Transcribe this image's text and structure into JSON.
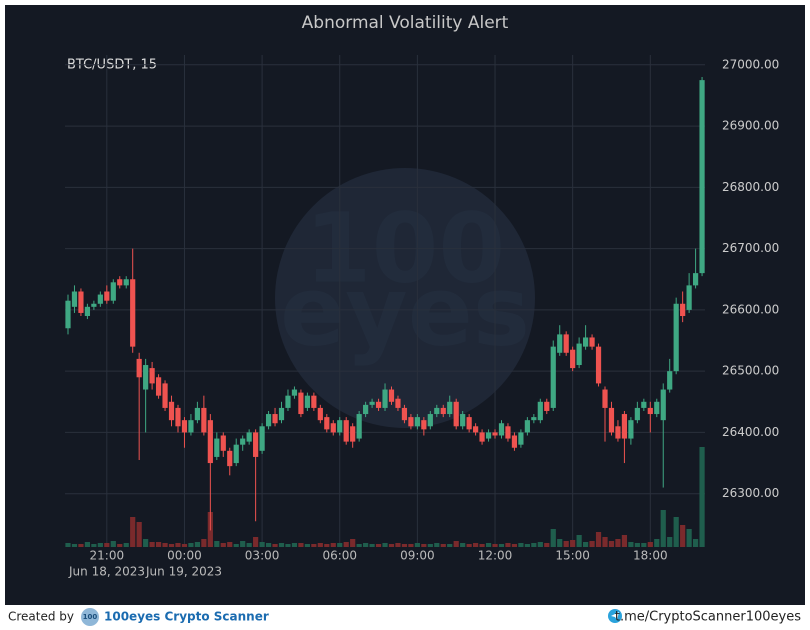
{
  "chart_data": {
    "type": "candlestick",
    "title": "Abnormal Volatility Alert",
    "subtitle": "BTC/USDT, 15",
    "watermark": [
      "100",
      "eyes"
    ],
    "categories": [
      null,
      null,
      null,
      null,
      null,
      null,
      "21:00",
      null,
      null,
      null,
      null,
      null,
      null,
      null,
      null,
      null,
      null,
      null,
      "00:00",
      null,
      null,
      null,
      null,
      null,
      null,
      null,
      null,
      null,
      null,
      null,
      "03:00",
      null,
      null,
      null,
      null,
      null,
      null,
      null,
      null,
      null,
      null,
      null,
      "06:00",
      null,
      null,
      null,
      null,
      null,
      null,
      null,
      null,
      null,
      null,
      null,
      "09:00",
      null,
      null,
      null,
      null,
      null,
      null,
      null,
      null,
      null,
      null,
      null,
      "12:00",
      null,
      null,
      null,
      null,
      null,
      null,
      null,
      null,
      null,
      null,
      null,
      "15:00",
      null,
      null,
      null,
      null,
      null,
      null,
      null,
      null,
      null,
      null,
      null,
      "18:00",
      null,
      null,
      null,
      null,
      null,
      null,
      null,
      null
    ],
    "date_labels": [
      "Jun 18, 2023",
      "Jun 19, 2023"
    ],
    "open": [
      26570,
      26605,
      26630,
      26590,
      26605,
      26610,
      26630,
      26615,
      26650,
      26640,
      26650,
      26520,
      26470,
      26505,
      26490,
      26480,
      26450,
      26440,
      26420,
      26400,
      26420,
      26440,
      26420,
      26360,
      26395,
      26370,
      26350,
      26380,
      26385,
      26400,
      26370,
      26410,
      26430,
      26420,
      26440,
      26460,
      26465,
      26440,
      26460,
      26440,
      26425,
      26415,
      26400,
      26420,
      26410,
      26390,
      26430,
      26445,
      26450,
      26440,
      26470,
      26455,
      26440,
      26425,
      26410,
      26420,
      26410,
      26430,
      26440,
      26430,
      26450,
      26410,
      26425,
      26410,
      26400,
      26390,
      26400,
      26395,
      26410,
      26395,
      26380,
      26400,
      26420,
      26420,
      26450,
      26440,
      26530,
      26560,
      26535,
      26510,
      26540,
      26555,
      26540,
      26470,
      26440,
      26410,
      26430,
      26390,
      26420,
      26440,
      26440,
      26430,
      26420,
      26470,
      26500,
      26610,
      26600,
      26640,
      26660
    ],
    "high": [
      26625,
      26640,
      26635,
      26610,
      26615,
      26630,
      26640,
      26650,
      26655,
      26655,
      26700,
      26530,
      26520,
      26515,
      26495,
      26485,
      26460,
      26445,
      26425,
      26430,
      26450,
      26460,
      26430,
      26400,
      26400,
      26375,
      26390,
      26395,
      26405,
      26405,
      26415,
      26435,
      26440,
      26450,
      26470,
      26475,
      26470,
      26465,
      26465,
      26445,
      26430,
      26420,
      26425,
      26425,
      26415,
      26435,
      26450,
      26455,
      26455,
      26480,
      26475,
      26460,
      26445,
      26430,
      26430,
      26425,
      26435,
      26445,
      26445,
      26460,
      26455,
      26435,
      26430,
      26415,
      26405,
      26405,
      26405,
      26420,
      26415,
      26400,
      26405,
      26425,
      26430,
      26455,
      26455,
      26550,
      26575,
      26565,
      26540,
      26555,
      26575,
      26560,
      26545,
      26475,
      26450,
      26420,
      26435,
      26425,
      26450,
      26455,
      26450,
      26455,
      26480,
      26520,
      26620,
      26630,
      26660,
      26700,
      26980
    ],
    "low": [
      26560,
      26595,
      26590,
      26585,
      26600,
      26605,
      26610,
      26610,
      26635,
      26635,
      26530,
      26355,
      26400,
      26470,
      26455,
      26435,
      26410,
      26400,
      26375,
      26395,
      26415,
      26395,
      26240,
      26355,
      26360,
      26330,
      26345,
      26370,
      26380,
      26255,
      26365,
      26405,
      26410,
      26415,
      26435,
      26455,
      26425,
      26435,
      26435,
      26415,
      26400,
      26395,
      26395,
      26380,
      26375,
      26385,
      26425,
      26440,
      26435,
      26435,
      26445,
      26435,
      26415,
      26405,
      26405,
      26395,
      26405,
      26425,
      26425,
      26425,
      26405,
      26405,
      26400,
      26395,
      26380,
      26385,
      26390,
      26390,
      26385,
      26370,
      26375,
      26395,
      26415,
      26415,
      26430,
      26435,
      26525,
      26525,
      26500,
      26505,
      26535,
      26535,
      26475,
      26385,
      26395,
      26385,
      26350,
      26380,
      26415,
      26435,
      26400,
      26425,
      26310,
      26465,
      26495,
      26580,
      26595,
      26635,
      26655
    ],
    "close": [
      26615,
      26630,
      26595,
      26605,
      26610,
      26625,
      26615,
      26645,
      26640,
      26650,
      26540,
      26490,
      26510,
      26480,
      26460,
      26440,
      26420,
      26410,
      26400,
      26420,
      26440,
      26400,
      26350,
      26390,
      26370,
      26345,
      26380,
      26390,
      26400,
      26360,
      26410,
      26430,
      26415,
      26440,
      26460,
      26470,
      26430,
      26460,
      26440,
      26420,
      26405,
      26400,
      26420,
      26385,
      26385,
      26430,
      26445,
      26450,
      26440,
      26470,
      26450,
      26440,
      26420,
      26410,
      26425,
      26405,
      26430,
      26440,
      26430,
      26450,
      26410,
      26430,
      26405,
      26400,
      26385,
      26400,
      26395,
      26415,
      26390,
      26375,
      26400,
      26420,
      26425,
      26450,
      26435,
      26540,
      26560,
      26530,
      26505,
      26545,
      26555,
      26540,
      26480,
      26440,
      26400,
      26390,
      26390,
      26420,
      26440,
      26450,
      26430,
      26450,
      26470,
      26500,
      26610,
      26590,
      26640,
      26660,
      26975
    ],
    "volume": [
      4,
      3,
      3,
      5,
      3,
      4,
      4,
      6,
      3,
      4,
      30,
      25,
      8,
      5,
      5,
      4,
      3,
      4,
      3,
      4,
      5,
      8,
      35,
      6,
      4,
      5,
      3,
      6,
      4,
      10,
      5,
      4,
      3,
      4,
      3,
      4,
      4,
      3,
      3,
      4,
      3,
      4,
      4,
      5,
      8,
      3,
      4,
      3,
      3,
      4,
      3,
      4,
      3,
      3,
      4,
      3,
      3,
      4,
      3,
      3,
      6,
      4,
      3,
      4,
      3,
      4,
      3,
      3,
      4,
      3,
      4,
      3,
      4,
      5,
      4,
      18,
      8,
      6,
      7,
      12,
      5,
      6,
      15,
      10,
      6,
      8,
      12,
      5,
      4,
      4,
      5,
      8,
      37,
      10,
      30,
      22,
      18,
      8,
      100
    ],
    "up_color": "#3fa883",
    "down_color": "#ef5350",
    "up_volume_color": "#1f5e4d",
    "down_volume_color": "#7a2a2c",
    "ylim": [
      26213,
      27016
    ],
    "yticks": [
      {
        "value": 26300,
        "label": "26300.00"
      },
      {
        "value": 26400,
        "label": "26400.00"
      },
      {
        "value": 26500,
        "label": "26500.00"
      },
      {
        "value": 26600,
        "label": "26600.00"
      },
      {
        "value": 26700,
        "label": "26700.00"
      },
      {
        "value": 26800,
        "label": "26800.00"
      },
      {
        "value": 26900,
        "label": "26900.00"
      },
      {
        "value": 27000,
        "label": "27000.00"
      }
    ],
    "grid": true
  },
  "footer": {
    "created_by": "Created by",
    "logo": "100",
    "brand": "100eyes Crypto Scanner",
    "link": "t.me/CryptoScanner100eyes"
  }
}
